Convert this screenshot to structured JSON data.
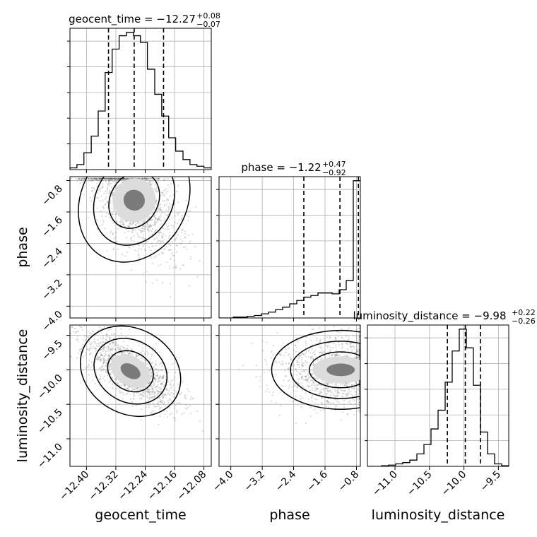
{
  "chart_data": {
    "type": "corner",
    "parameters": [
      "geocent_time",
      "phase",
      "luminosity_distance"
    ],
    "axis_labels": {
      "geocent_time": "geocent_time",
      "phase": "phase",
      "luminosity_distance": "luminosity_distance"
    },
    "ranges": {
      "geocent_time": [
        -12.445,
        -12.06
      ],
      "phase": [
        -4.3,
        -0.7
      ],
      "luminosity_distance": [
        -11.4,
        -9.35
      ]
    },
    "ticks": {
      "geocent_time": [
        -12.4,
        -12.32,
        -12.24,
        -12.16,
        -12.08
      ],
      "phase": [
        -4.0,
        -3.2,
        -2.4,
        -1.6,
        -0.8
      ],
      "luminosity_distance": [
        -11.0,
        -10.5,
        -10.0,
        -9.5
      ]
    },
    "tick_labels": {
      "geocent_time": [
        "−12.40",
        "−12.32",
        "−12.24",
        "−12.16",
        "−12.08"
      ],
      "phase": [
        "−4.0",
        "−3.2",
        "−2.4",
        "−1.6",
        "−0.8"
      ],
      "luminosity_distance": [
        "−11.0",
        "−10.5",
        "−10.0",
        "−9.5"
      ]
    },
    "titles": {
      "geocent_time": {
        "name": "geocent_time",
        "median": "−12.27",
        "plus": "+0.08",
        "minus": "−0.07"
      },
      "phase": {
        "name": "phase",
        "median": "−1.22",
        "plus": "+0.47",
        "minus": "−0.92"
      },
      "luminosity_distance": {
        "name": "luminosity_distance",
        "median": "−9.98",
        "plus": "+0.22",
        "minus": "−0.26"
      }
    },
    "quantiles": {
      "geocent_time": [
        -12.34,
        -12.27,
        -12.19
      ],
      "phase": [
        -2.14,
        -1.22,
        -0.75
      ],
      "luminosity_distance": [
        -10.24,
        -9.98,
        -9.76
      ]
    },
    "histograms": {
      "geocent_time": {
        "bins": [
          -12.445,
          -12.426,
          -12.407,
          -12.387,
          -12.368,
          -12.349,
          -12.33,
          -12.311,
          -12.291,
          -12.272,
          -12.253,
          -12.234,
          -12.214,
          -12.195,
          -12.176,
          -12.157,
          -12.137,
          -12.118,
          -12.099,
          -12.08,
          -12.06
        ],
        "counts": [
          1,
          3,
          10,
          20,
          35,
          58,
          72,
          80,
          82,
          80,
          76,
          60,
          45,
          32,
          19,
          11,
          6,
          3,
          2,
          1
        ]
      },
      "phase": {
        "bins": [
          -4.3,
          -4.12,
          -3.94,
          -3.76,
          -3.58,
          -3.4,
          -3.22,
          -3.04,
          -2.86,
          -2.68,
          -2.5,
          -2.32,
          -2.14,
          -1.96,
          -1.78,
          -1.6,
          -1.42,
          -1.24,
          -1.06,
          -0.88,
          -0.7
        ],
        "counts": [
          0,
          0,
          1,
          1,
          2,
          3,
          5,
          7,
          10,
          13,
          17,
          21,
          25,
          27,
          30,
          30,
          29,
          34,
          45,
          165
        ]
      },
      "luminosity_distance": {
        "bins": [
          -11.4,
          -11.2975,
          -11.195,
          -11.0925,
          -10.99,
          -10.8875,
          -10.785,
          -10.6825,
          -10.58,
          -10.4775,
          -10.375,
          -10.2725,
          -10.17,
          -10.0675,
          -9.965,
          -9.8625,
          -9.76,
          -9.6575,
          -9.555,
          -9.4525,
          -9.35
        ],
        "counts": [
          0,
          0,
          1,
          2,
          4,
          6,
          10,
          20,
          35,
          60,
          90,
          135,
          185,
          220,
          190,
          130,
          55,
          20,
          4,
          1
        ]
      }
    },
    "grid": true,
    "colors": {
      "line": "#000000",
      "density": "#555555",
      "grid": "#b0b0b0"
    }
  }
}
